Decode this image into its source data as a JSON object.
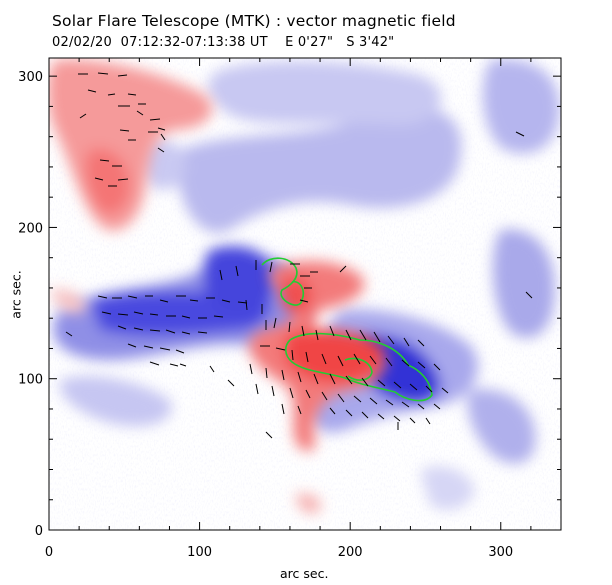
{
  "figure": {
    "title": "Solar Flare Telescope (MTK) : vector magnetic field",
    "date": "02/02/20",
    "time_range": "07:12:32-07:13:38 UT",
    "pos_ew": "E 0'27\"",
    "pos_ns": "S 3'42\""
  },
  "axes": {
    "xlabel": "arc sec.",
    "ylabel": "arc sec.",
    "x_ticks": [
      "0",
      "100",
      "200",
      "300"
    ],
    "y_ticks": [
      "0",
      "100",
      "200",
      "300"
    ],
    "xlim": [
      0,
      340
    ],
    "ylim": [
      0,
      312
    ]
  },
  "colors": {
    "positive": "#f36a6a",
    "negative": "#3b3bd6",
    "contour": "#22cc33",
    "vectors": "#000000"
  }
}
